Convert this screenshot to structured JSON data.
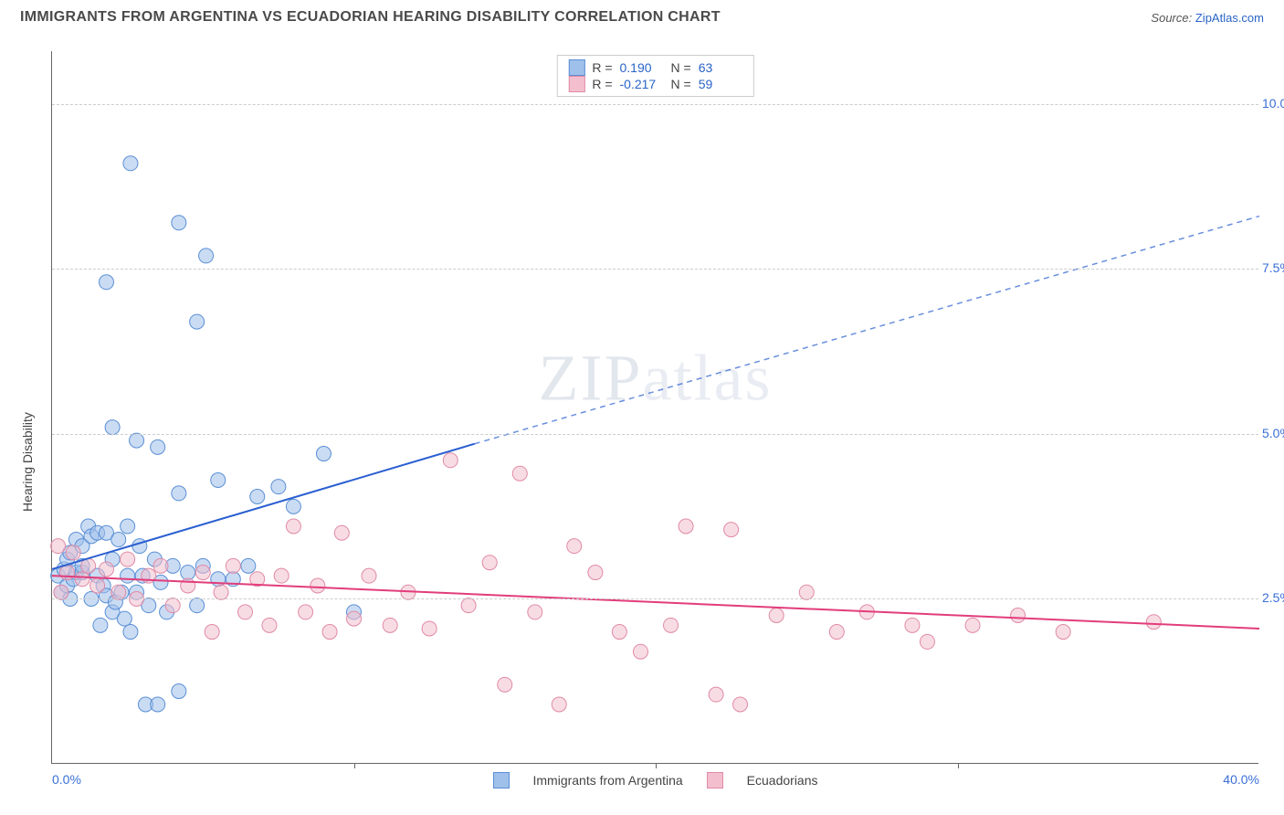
{
  "header": {
    "title": "IMMIGRANTS FROM ARGENTINA VS ECUADORIAN HEARING DISABILITY CORRELATION CHART",
    "source_label": "Source:",
    "source_link": "ZipAtlas.com"
  },
  "watermark": {
    "zip": "ZIP",
    "atlas": "atlas"
  },
  "chart": {
    "type": "scatter",
    "ylabel": "Hearing Disability",
    "xlim": [
      0,
      40
    ],
    "ylim": [
      0,
      10.8
    ],
    "xticks": [
      0,
      10,
      20,
      30,
      40
    ],
    "xtick_labels": [
      "0.0%",
      "",
      "",
      "",
      "40.0%"
    ],
    "xtick_show_marks": [
      false,
      true,
      true,
      true,
      false
    ],
    "yticks": [
      2.5,
      5.0,
      7.5,
      10.0
    ],
    "ytick_labels": [
      "2.5%",
      "5.0%",
      "7.5%",
      "10.0%"
    ],
    "background_color": "#ffffff",
    "grid_color": "#cccccc",
    "axis_color": "#666666",
    "tick_label_color": "#3a6fd8",
    "marker_radius": 8,
    "marker_opacity": 0.55,
    "series": [
      {
        "name": "Immigrants from Argentina",
        "fill": "#9fc0ea",
        "stroke": "#5a8fd6",
        "R_label": "R =",
        "R": "0.190",
        "N_label": "N =",
        "N": "63",
        "trend": {
          "x1": 0,
          "y1": 2.95,
          "x2_solid": 14,
          "y2_solid": 4.85,
          "x2": 40,
          "y2": 8.3,
          "color": "#2a5fd0",
          "width": 2
        },
        "points": [
          [
            0.2,
            2.85
          ],
          [
            0.3,
            2.6
          ],
          [
            0.4,
            2.95
          ],
          [
            0.5,
            3.1
          ],
          [
            0.5,
            2.7
          ],
          [
            0.6,
            3.2
          ],
          [
            0.7,
            2.8
          ],
          [
            0.8,
            3.4
          ],
          [
            0.8,
            2.9
          ],
          [
            1.0,
            2.9
          ],
          [
            1.0,
            3.3
          ],
          [
            1.2,
            3.6
          ],
          [
            1.3,
            2.5
          ],
          [
            1.3,
            3.45
          ],
          [
            1.5,
            3.5
          ],
          [
            1.5,
            2.85
          ],
          [
            1.6,
            2.1
          ],
          [
            1.7,
            2.7
          ],
          [
            1.8,
            3.5
          ],
          [
            1.8,
            2.55
          ],
          [
            2.0,
            3.1
          ],
          [
            2.0,
            2.3
          ],
          [
            2.1,
            2.45
          ],
          [
            2.2,
            3.4
          ],
          [
            2.3,
            2.6
          ],
          [
            2.4,
            2.2
          ],
          [
            2.5,
            3.6
          ],
          [
            2.5,
            2.85
          ],
          [
            2.6,
            2.0
          ],
          [
            2.8,
            2.6
          ],
          [
            2.9,
            3.3
          ],
          [
            3.0,
            2.85
          ],
          [
            3.1,
            0.9
          ],
          [
            3.2,
            2.4
          ],
          [
            3.4,
            3.1
          ],
          [
            3.5,
            0.9
          ],
          [
            3.6,
            2.75
          ],
          [
            3.8,
            2.3
          ],
          [
            4.0,
            3.0
          ],
          [
            4.2,
            1.1
          ],
          [
            4.5,
            2.9
          ],
          [
            4.8,
            2.4
          ],
          [
            5.0,
            3.0
          ],
          [
            5.5,
            2.8
          ],
          [
            6.0,
            2.8
          ],
          [
            6.5,
            3.0
          ],
          [
            7.5,
            4.2
          ],
          [
            8.0,
            3.9
          ],
          [
            9.0,
            4.7
          ],
          [
            10.0,
            2.3
          ],
          [
            1.8,
            7.3
          ],
          [
            2.6,
            9.1
          ],
          [
            4.2,
            8.2
          ],
          [
            4.8,
            6.7
          ],
          [
            5.1,
            7.7
          ],
          [
            2.0,
            5.1
          ],
          [
            2.8,
            4.9
          ],
          [
            3.5,
            4.8
          ],
          [
            4.2,
            4.1
          ],
          [
            6.8,
            4.05
          ],
          [
            5.5,
            4.3
          ],
          [
            1.0,
            3.0
          ],
          [
            0.6,
            2.5
          ]
        ]
      },
      {
        "name": "Ecuadorians",
        "fill": "#f3bfce",
        "stroke": "#e08aa6",
        "R_label": "R =",
        "R": "-0.217",
        "N_label": "N =",
        "N": "59",
        "trend": {
          "x1": 0,
          "y1": 2.85,
          "x2_solid": 40,
          "y2_solid": 2.05,
          "x2": 40,
          "y2": 2.05,
          "color": "#e23d7b",
          "width": 2
        },
        "points": [
          [
            0.5,
            2.9
          ],
          [
            0.7,
            3.2
          ],
          [
            1.0,
            2.8
          ],
          [
            1.2,
            3.0
          ],
          [
            1.5,
            2.7
          ],
          [
            1.8,
            2.95
          ],
          [
            2.2,
            2.6
          ],
          [
            2.5,
            3.1
          ],
          [
            2.8,
            2.5
          ],
          [
            3.2,
            2.85
          ],
          [
            3.6,
            3.0
          ],
          [
            4.0,
            2.4
          ],
          [
            4.5,
            2.7
          ],
          [
            5.0,
            2.9
          ],
          [
            5.3,
            2.0
          ],
          [
            5.6,
            2.6
          ],
          [
            6.0,
            3.0
          ],
          [
            6.4,
            2.3
          ],
          [
            6.8,
            2.8
          ],
          [
            7.2,
            2.1
          ],
          [
            7.6,
            2.85
          ],
          [
            8.0,
            3.6
          ],
          [
            8.4,
            2.3
          ],
          [
            8.8,
            2.7
          ],
          [
            9.2,
            2.0
          ],
          [
            9.6,
            3.5
          ],
          [
            10.0,
            2.2
          ],
          [
            10.5,
            2.85
          ],
          [
            11.2,
            2.1
          ],
          [
            11.8,
            2.6
          ],
          [
            12.5,
            2.05
          ],
          [
            13.2,
            4.6
          ],
          [
            13.8,
            2.4
          ],
          [
            14.5,
            3.05
          ],
          [
            15.0,
            1.2
          ],
          [
            15.5,
            4.4
          ],
          [
            16.0,
            2.3
          ],
          [
            16.8,
            0.9
          ],
          [
            17.3,
            3.3
          ],
          [
            18.0,
            2.9
          ],
          [
            18.8,
            2.0
          ],
          [
            19.5,
            1.7
          ],
          [
            20.5,
            2.1
          ],
          [
            21.0,
            3.6
          ],
          [
            22.0,
            1.05
          ],
          [
            22.5,
            3.55
          ],
          [
            22.8,
            0.9
          ],
          [
            24.0,
            2.25
          ],
          [
            25.0,
            2.6
          ],
          [
            26.0,
            2.0
          ],
          [
            27.0,
            2.3
          ],
          [
            28.5,
            2.1
          ],
          [
            29.0,
            1.85
          ],
          [
            30.5,
            2.1
          ],
          [
            32.0,
            2.25
          ],
          [
            33.5,
            2.0
          ],
          [
            36.5,
            2.15
          ],
          [
            0.2,
            3.3
          ],
          [
            0.3,
            2.6
          ]
        ]
      }
    ]
  }
}
